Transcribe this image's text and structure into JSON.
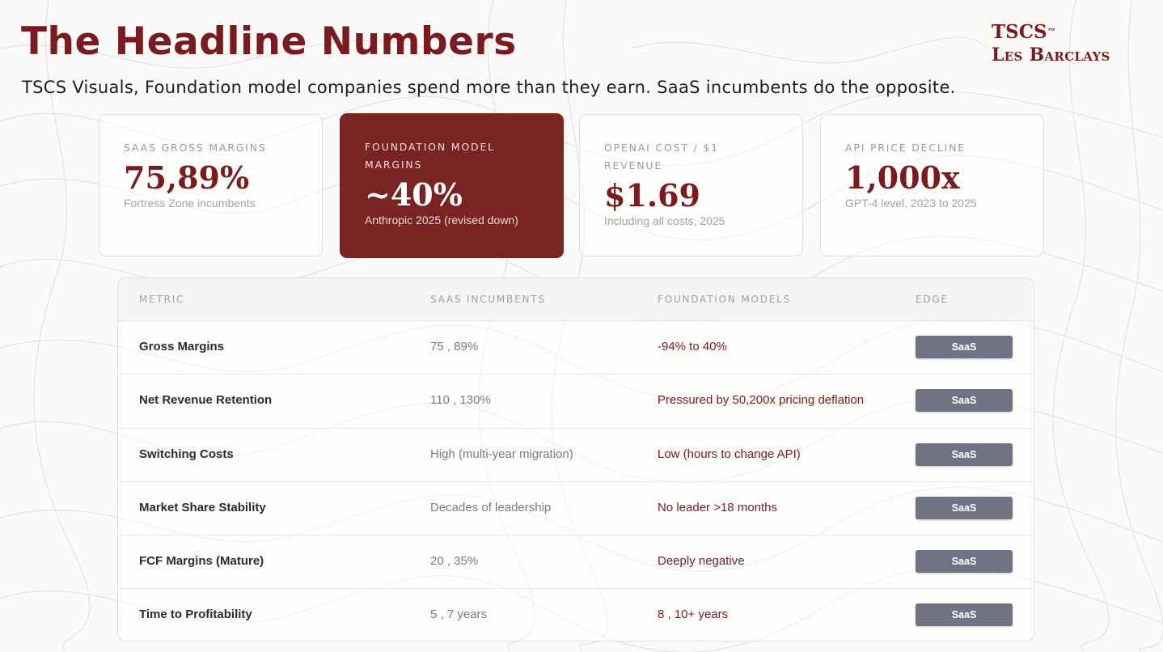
{
  "header": {
    "title": "The Headline Numbers",
    "subtitle": "TSCS Visuals, Foundation model companies spend more than they earn. SaaS incumbents do the opposite.",
    "logo_line1": "TSCS",
    "logo_tm": "™",
    "logo_line2": "Les Barclays"
  },
  "cards": [
    {
      "label": "SaaS Gross Margins",
      "value": "75,89%",
      "note": "Fortress Zone incumbents"
    },
    {
      "label": "Foundation Model Margins",
      "value": "~40%",
      "note": "Anthropic 2025 (revised down)"
    },
    {
      "label": "OpenAI Cost / $1 Revenue",
      "value": "$1.69",
      "note": "Including all costs, 2025"
    },
    {
      "label": "API Price Decline",
      "value": "1,000x",
      "note": "GPT-4 level, 2023 to 2025"
    }
  ],
  "table": {
    "headers": {
      "metric": "Metric",
      "saas": "SaaS Incumbents",
      "fm": "Foundation Models",
      "edge": "Edge"
    },
    "rows": [
      {
        "metric": "Gross Margins",
        "saas": "75 , 89%",
        "fm": "-94% to 40%",
        "edge": "SaaS"
      },
      {
        "metric": "Net Revenue Retention",
        "saas": "110 , 130%",
        "fm": "Pressured by 50,200x pricing deflation",
        "edge": "SaaS"
      },
      {
        "metric": "Switching Costs",
        "saas": "High (multi-year migration)",
        "fm": "Low (hours to change API)",
        "edge": "SaaS"
      },
      {
        "metric": "Market Share Stability",
        "saas": "Decades of leadership",
        "fm": "No leader >18 months",
        "edge": "SaaS"
      },
      {
        "metric": "FCF Margins (Mature)",
        "saas": "20 , 35%",
        "fm": "Deeply negative",
        "edge": "SaaS"
      },
      {
        "metric": "Time to Profitability",
        "saas": "5 , 7 years",
        "fm": "8 , 10+ years",
        "edge": "SaaS"
      }
    ]
  },
  "colors": {
    "accent": "#7a1b1f",
    "active_card": "#7a2323",
    "badge": "#6f7384"
  }
}
